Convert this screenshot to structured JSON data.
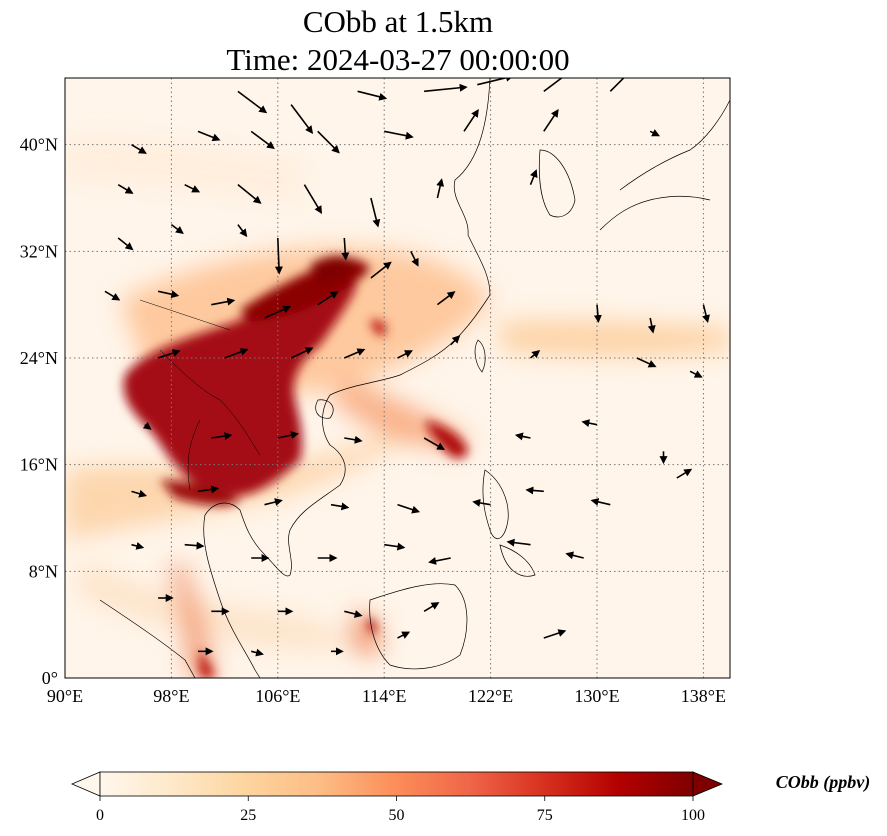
{
  "title": {
    "line1": "CObb at 1.5km",
    "line2": "Time: 2024-03-27 00:00:00"
  },
  "map": {
    "lon_range": [
      90,
      140
    ],
    "lat_range": [
      0,
      45
    ],
    "lon_ticks": [
      90,
      98,
      106,
      114,
      122,
      130,
      138
    ],
    "lat_ticks": [
      0,
      8,
      16,
      24,
      32,
      40
    ],
    "lon_tick_labels": [
      "90°E",
      "98°E",
      "106°E",
      "114°E",
      "122°E",
      "130°E",
      "138°E"
    ],
    "lat_tick_labels": [
      "0°",
      "8°N",
      "16°N",
      "24°N",
      "32°N",
      "40°N"
    ],
    "gridlines": true,
    "colormap": "OrRd"
  },
  "colorbar": {
    "title": "CObb (ppbv)",
    "min": 0,
    "max": 100,
    "ticks": [
      0,
      25,
      50,
      75,
      100
    ],
    "tick_labels": [
      "0",
      "25",
      "50",
      "75",
      "100"
    ],
    "extend": "both",
    "colors": [
      "#fff7ec",
      "#fee8c8",
      "#fdd49e",
      "#fdbb84",
      "#fc8d59",
      "#ef6548",
      "#d7301f",
      "#b30000",
      "#7f0000"
    ]
  },
  "wind_vectors": [
    [
      103,
      44,
      2,
      -1.5
    ],
    [
      107,
      43,
      1.5,
      -2
    ],
    [
      112,
      44,
      2,
      -0.5
    ],
    [
      117,
      44,
      3,
      0.3
    ],
    [
      121,
      44.5,
      2.5,
      0.6
    ],
    [
      126,
      44,
      2,
      1.5
    ],
    [
      131,
      44,
      1.5,
      1.5
    ],
    [
      95,
      40,
      1,
      -0.6
    ],
    [
      100,
      41,
      1.5,
      -0.6
    ],
    [
      104,
      41,
      1.6,
      -1.2
    ],
    [
      109,
      41,
      1.5,
      -1.5
    ],
    [
      114,
      41,
      2,
      -0.4
    ],
    [
      120,
      41,
      1,
      1.5
    ],
    [
      126,
      41,
      1,
      1.5
    ],
    [
      134,
      41,
      0.6,
      -0.3
    ],
    [
      94,
      37,
      1,
      -0.6
    ],
    [
      99,
      37,
      1,
      -0.5
    ],
    [
      103,
      37,
      1.6,
      -1.3
    ],
    [
      108,
      37,
      1.2,
      -2
    ],
    [
      113,
      36,
      0.5,
      -2
    ],
    [
      118,
      36,
      0.3,
      1.3
    ],
    [
      125,
      37,
      0.4,
      1
    ],
    [
      94,
      33,
      1,
      -0.8
    ],
    [
      98,
      34,
      0.8,
      -0.6
    ],
    [
      103,
      34,
      0.6,
      -0.8
    ],
    [
      106,
      33,
      0.1,
      -2.5
    ],
    [
      111,
      33,
      0.1,
      -1.5
    ],
    [
      116,
      32,
      0.5,
      -1
    ],
    [
      93,
      29,
      1,
      -0.6
    ],
    [
      97,
      29,
      1.4,
      -0.3
    ],
    [
      101,
      28,
      1.6,
      0.3
    ],
    [
      105,
      27,
      1.8,
      0.8
    ],
    [
      109,
      28,
      1.4,
      0.9
    ],
    [
      113,
      30,
      1.4,
      1.1
    ],
    [
      118,
      28,
      1.2,
      0.9
    ],
    [
      97,
      24,
      1.5,
      0.5
    ],
    [
      102,
      24,
      1.6,
      0.6
    ],
    [
      107,
      24,
      1.5,
      0.7
    ],
    [
      111,
      24,
      1.4,
      0.6
    ],
    [
      115,
      24,
      1,
      0.5
    ],
    [
      119,
      25,
      0.6,
      0.6
    ],
    [
      130,
      28,
      0.1,
      -1.2
    ],
    [
      134,
      27,
      0.2,
      -1
    ],
    [
      138,
      28,
      0.3,
      -1.2
    ],
    [
      125,
      24,
      0.6,
      0.5
    ],
    [
      133,
      24,
      1.3,
      -0.6
    ],
    [
      137,
      23,
      0.8,
      -0.4
    ],
    [
      96,
      19,
      0.4,
      -0.3
    ],
    [
      101,
      18,
      1.4,
      0.2
    ],
    [
      106,
      18,
      1.4,
      0.3
    ],
    [
      111,
      18,
      1.2,
      -0.2
    ],
    [
      117,
      18,
      1.4,
      -0.8
    ],
    [
      125,
      18,
      -1,
      0.2
    ],
    [
      130,
      19,
      -1,
      0.2
    ],
    [
      135,
      17,
      0,
      -0.8
    ],
    [
      95,
      14,
      1,
      -0.3
    ],
    [
      100,
      14,
      1.4,
      0.2
    ],
    [
      105,
      13,
      1.2,
      0.3
    ],
    [
      110,
      13,
      1.2,
      -0.2
    ],
    [
      115,
      13,
      1.5,
      -0.5
    ],
    [
      122,
      13,
      -1.2,
      0.2
    ],
    [
      126,
      14,
      -1.2,
      0.1
    ],
    [
      131,
      13,
      -1.3,
      0.3
    ],
    [
      136,
      15,
      1,
      0.6
    ],
    [
      95,
      10,
      0.8,
      -0.2
    ],
    [
      99,
      10,
      1.3,
      -0.1
    ],
    [
      104,
      9,
      1.2,
      0
    ],
    [
      109,
      9,
      1.3,
      0
    ],
    [
      114,
      10,
      1.4,
      -0.2
    ],
    [
      119,
      9,
      -1.5,
      -0.3
    ],
    [
      125,
      10,
      -1.6,
      0.2
    ],
    [
      129,
      9,
      -1.2,
      0.3
    ],
    [
      97,
      6,
      1,
      0
    ],
    [
      101,
      5,
      1.2,
      0
    ],
    [
      106,
      5,
      1,
      0
    ],
    [
      111,
      5,
      1.2,
      -0.3
    ],
    [
      117,
      5,
      1,
      0.6
    ],
    [
      126,
      3,
      1.5,
      0.5
    ],
    [
      100,
      2,
      1,
      0
    ],
    [
      104,
      2,
      0.8,
      -0.2
    ],
    [
      110,
      2,
      0.8,
      0
    ],
    [
      115,
      3,
      0.8,
      0.4
    ]
  ]
}
